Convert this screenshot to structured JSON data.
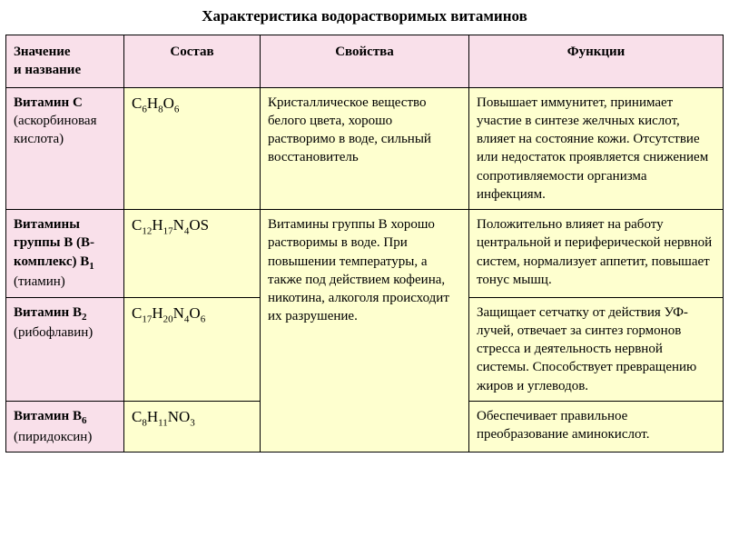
{
  "title": "Характеристика водорастворимых витаминов",
  "headers": {
    "h1a": "Значение",
    "h1b": "и название",
    "h2": "Состав",
    "h3": "Свойства",
    "h4": "Функции"
  },
  "rows": {
    "r1": {
      "name_bold": "Витамин С",
      "name_sub": "(аскорбиновая кислота)",
      "props": "Кристаллическое вещество белого цвета, хорошо растворимо в воде, сильный восстановитель",
      "func": "Повышает иммунитет, принимает участие в синтезе желчных кислот, влияет на состояние кожи. Отсутствие или недостаток проявляется снижением сопротивляемости организма инфекциям."
    },
    "r2": {
      "name_bold_a": "Витамины группы В (В-комплекс) В",
      "name_bold_sub": "1",
      "name_sub": "(тиамин)",
      "props": "Витамины группы В хорошо растворимы в воде. При повышении температуры, а также под действием кофеина, никотина, алкоголя происходит их разрушение.",
      "func": "Положительно влияет на работу центральной и периферической нервной систем, нормализует аппетит, повышает тонус мышц."
    },
    "r3": {
      "name_bold_a": "Витамин В",
      "name_bold_sub": "2",
      "name_sub": "(рибофлавин)",
      "func": "Защищает сетчатку от действия УФ-лучей, отвечает за синтез гормонов стресса и деятельность нервной системы. Способствует превращению жиров и углеводов."
    },
    "r4": {
      "name_bold_a": "Витамин В",
      "name_bold_sub": "6",
      "name_sub": "(пиридоксин)",
      "func": "Обеспечивает правильное преобразование аминокислот."
    }
  },
  "formulas": {
    "f1": {
      "p1": "C",
      "s1": "6",
      "p2": "H",
      "s2": "8",
      "p3": "O",
      "s3": "6"
    },
    "f2": {
      "p1": "C",
      "s1": "12",
      "p2": "H",
      "s2": "17",
      "p3": "N",
      "s3": "4",
      "p4": "OS"
    },
    "f3": {
      "p1": "C",
      "s1": "17",
      "p2": "H",
      "s2": "20",
      "p3": "N",
      "s3": "4",
      "p4": "O",
      "s4": "6"
    },
    "f4": {
      "p1": "C",
      "s1": "8",
      "p2": "H",
      "s2": "11",
      "p3": "NO",
      "s3": "3"
    }
  },
  "colors": {
    "header_bg": "#f9e0ea",
    "body_bg": "#feffcf",
    "border": "#000000",
    "text": "#000000"
  }
}
